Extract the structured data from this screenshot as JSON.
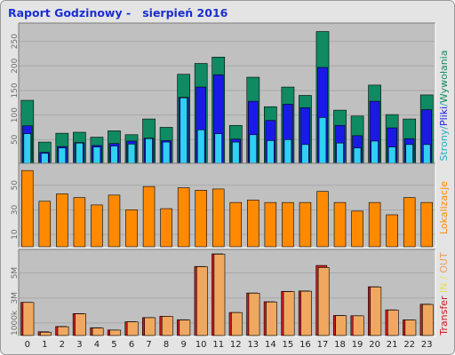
{
  "title": "Raport Godzinowy -   sierpień 2016",
  "colors": {
    "background": "#e4e4e4",
    "panel": "#c0c0c0",
    "grid": "#a8a8a8",
    "title": "#1a2ed0",
    "strony": "#0f8a62",
    "pliki": "#1a1ae6",
    "wywolania": "#2fd0f2",
    "lokalizacje": "#ff8a00",
    "transfer_in": "#d11a1a",
    "transfer_out": "#f0a860"
  },
  "side_labels": {
    "top": [
      {
        "text": "Strony",
        "color": "#22a8c8"
      },
      {
        "text": "/",
        "color": "#22a8c8"
      },
      {
        "text": "Pliki",
        "color": "#1a1ae6"
      },
      {
        "text": "/",
        "color": "#22a8c8"
      },
      {
        "text": "Wywołania",
        "color": "#0f8a62"
      }
    ],
    "middle": [
      {
        "text": "Lokalizacje",
        "color": "#ff8a00"
      }
    ],
    "bottom": [
      {
        "text": "Transfer",
        "color": "#d11a1a"
      },
      {
        "text": " IN",
        "color": "#e8e060"
      },
      {
        "text": " / ",
        "color": "#e8e060"
      },
      {
        "text": "OUT",
        "color": "#e8a060"
      }
    ]
  },
  "chart_data": [
    {
      "type": "bar",
      "categories": [
        "0",
        "1",
        "2",
        "3",
        "4",
        "5",
        "6",
        "7",
        "8",
        "9",
        "10",
        "11",
        "12",
        "13",
        "14",
        "15",
        "16",
        "17",
        "18",
        "19",
        "20",
        "21",
        "22",
        "23"
      ],
      "yticks": [
        "50",
        "100",
        "150",
        "200",
        "250"
      ],
      "ytick_values": [
        50,
        100,
        150,
        200,
        250
      ],
      "ylim": [
        0,
        280
      ],
      "series": [
        {
          "name": "Wywołania",
          "color": "#0f8a62",
          "values": [
            130,
            45,
            63,
            65,
            55,
            68,
            60,
            92,
            75,
            183,
            205,
            218,
            79,
            177,
            117,
            157,
            140,
            270,
            110,
            98,
            161,
            101,
            92,
            141
          ]
        },
        {
          "name": "Pliki",
          "color": "#1a1ae6",
          "values": [
            78,
            24,
            36,
            44,
            38,
            42,
            47,
            53,
            48,
            136,
            157,
            182,
            51,
            128,
            89,
            122,
            115,
            197,
            79,
            58,
            128,
            74,
            52,
            111
          ]
        },
        {
          "name": "Strony",
          "color": "#2fd0f2",
          "values": [
            62,
            22,
            33,
            43,
            35,
            37,
            41,
            52,
            45,
            135,
            70,
            62,
            45,
            60,
            48,
            50,
            40,
            95,
            43,
            33,
            47,
            35,
            40,
            40
          ]
        }
      ]
    },
    {
      "type": "bar",
      "categories": [
        "0",
        "1",
        "2",
        "3",
        "4",
        "5",
        "6",
        "7",
        "8",
        "9",
        "10",
        "11",
        "12",
        "13",
        "14",
        "15",
        "16",
        "17",
        "18",
        "19",
        "20",
        "21",
        "22",
        "23"
      ],
      "yticks": [
        "10",
        "30",
        "50"
      ],
      "ytick_values": [
        10,
        30,
        50
      ],
      "ylim": [
        0,
        65
      ],
      "series": [
        {
          "name": "Lokalizacje",
          "color": "#ff8a00",
          "values": [
            62,
            37,
            43,
            40,
            34,
            42,
            30,
            49,
            31,
            48,
            46,
            47,
            36,
            38,
            36,
            36,
            36,
            45,
            36,
            29,
            36,
            26,
            40,
            36
          ]
        }
      ]
    },
    {
      "type": "bar",
      "categories": [
        "0",
        "1",
        "2",
        "3",
        "4",
        "5",
        "6",
        "7",
        "8",
        "9",
        "10",
        "11",
        "12",
        "13",
        "14",
        "15",
        "16",
        "17",
        "18",
        "19",
        "20",
        "21",
        "22",
        "23"
      ],
      "yticks": [
        "1000k",
        "3M",
        "5M"
      ],
      "ytick_values": [
        1000,
        3000,
        5000
      ],
      "ylim": [
        0,
        6600
      ],
      "series": [
        {
          "name": "IN",
          "color": "#d11a1a",
          "values": [
            2650,
            300,
            720,
            1750,
            620,
            440,
            1100,
            1430,
            1540,
            1260,
            5520,
            6530,
            1840,
            3400,
            2700,
            3530,
            3560,
            5600,
            1600,
            1580,
            3900,
            2050,
            1250,
            2500
          ]
        },
        {
          "name": "OUT",
          "color": "#f0a860",
          "values": [
            2640,
            260,
            700,
            1730,
            600,
            430,
            1090,
            1420,
            1530,
            1240,
            5500,
            6500,
            1830,
            3380,
            2680,
            3510,
            3540,
            5440,
            1590,
            1570,
            3880,
            2030,
            1240,
            2480
          ]
        }
      ]
    }
  ]
}
